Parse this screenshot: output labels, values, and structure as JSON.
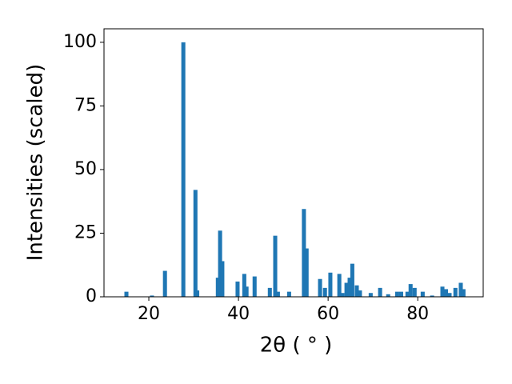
{
  "chart_data": {
    "type": "bar",
    "xlabel": "2θ ( ° )",
    "ylabel": "Intensities (scaled)",
    "color": "#1f77b4",
    "x": [
      15.0,
      20.7,
      23.6,
      27.7,
      30.4,
      30.8,
      35.4,
      35.9,
      36.4,
      39.8,
      41.3,
      41.8,
      43.6,
      47.0,
      48.2,
      48.8,
      51.3,
      54.6,
      55.2,
      58.2,
      59.3,
      60.5,
      62.5,
      63.2,
      64.1,
      64.8,
      65.4,
      66.4,
      67.1,
      69.5,
      71.6,
      73.4,
      75.4,
      76.3,
      77.7,
      78.4,
      79.3,
      81.1,
      83.2,
      85.5,
      86.3,
      87.1,
      88.4,
      89.6,
      90.2
    ],
    "values": [
      2,
      0.5,
      10.2,
      100,
      42,
      2.5,
      7.5,
      26,
      14,
      6,
      9,
      4,
      8,
      3.5,
      24,
      2,
      2,
      34.5,
      19,
      7,
      3.5,
      9.5,
      9,
      1.5,
      5.5,
      7.5,
      13,
      4.5,
      2.5,
      1.5,
      3.5,
      1,
      2,
      2,
      2,
      5,
      3.5,
      2,
      0.5,
      4,
      3,
      1.5,
      3.5,
      5.5,
      3
    ],
    "xlim": [
      10.0,
      94.6
    ],
    "ylim": [
      0,
      105.3
    ],
    "xticks": [
      20,
      40,
      60,
      80
    ],
    "yticks": [
      0,
      25,
      50,
      75,
      100
    ]
  }
}
